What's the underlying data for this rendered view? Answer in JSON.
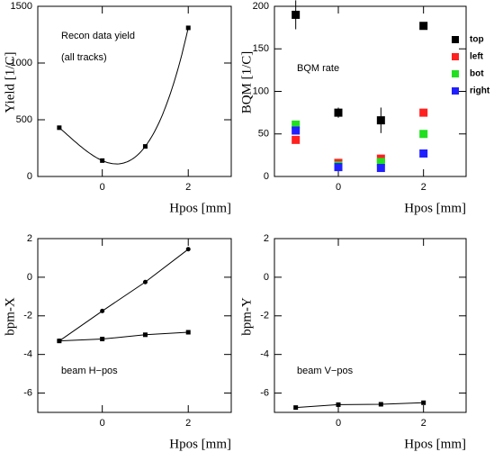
{
  "chart_data": [
    {
      "type": "scatter",
      "fit_curve": true,
      "y_label": "Yield  [1/C]",
      "x_label": "Hpos [mm]",
      "annotations": [
        "Recon data yield",
        "(all tracks)"
      ],
      "xlim": [
        -1.5,
        3
      ],
      "xticks": [
        0,
        2
      ],
      "ylim": [
        0,
        1500
      ],
      "yticks": [
        0,
        500,
        1000,
        1500
      ],
      "series": [
        {
          "color": "#000000",
          "marker": "square",
          "x": [
            -1,
            0,
            1,
            2
          ],
          "values": [
            430,
            140,
            265,
            1310
          ]
        }
      ]
    },
    {
      "type": "scatter",
      "y_label": "BQM  [1/C]",
      "x_label": "Hpos [mm]",
      "annotations": [
        "BQM rate"
      ],
      "legend": "outside-right",
      "xlim": [
        -1.5,
        3
      ],
      "xticks": [
        0,
        2
      ],
      "ylim": [
        0,
        200
      ],
      "yticks": [
        0,
        50,
        100,
        150,
        200
      ],
      "series": [
        {
          "name": "top",
          "color": "#000000",
          "marker": "square",
          "x": [
            -1,
            0,
            1,
            2
          ],
          "values": [
            190,
            75,
            66,
            177
          ],
          "errors": [
            17,
            6,
            15,
            3
          ]
        },
        {
          "name": "left",
          "color": "#ff2020",
          "marker": "square",
          "x": [
            -1,
            0,
            1,
            2
          ],
          "values": [
            43,
            16,
            21,
            75
          ]
        },
        {
          "name": "bot",
          "color": "#20e020",
          "marker": "square",
          "x": [
            -1,
            0,
            1,
            2
          ],
          "values": [
            61,
            13,
            17,
            50
          ]
        },
        {
          "name": "right",
          "color": "#2020ff",
          "marker": "square",
          "x": [
            -1,
            0,
            1,
            2
          ],
          "values": [
            54,
            11,
            10,
            27
          ]
        }
      ]
    },
    {
      "type": "line",
      "y_label": "bpm-X",
      "x_label": "Hpos [mm]",
      "annotations": [
        "beam H−pos"
      ],
      "xlim": [
        -1.5,
        3
      ],
      "xticks": [
        0,
        2
      ],
      "ylim": [
        -7,
        2
      ],
      "yticks": [
        -6,
        -4,
        -2,
        0,
        2
      ],
      "series": [
        {
          "color": "#000000",
          "marker": "circle",
          "x": [
            -1,
            0,
            1,
            2
          ],
          "values": [
            -3.3,
            -1.75,
            -0.25,
            1.45
          ]
        },
        {
          "color": "#000000",
          "marker": "square",
          "x": [
            -1,
            0,
            1,
            2
          ],
          "values": [
            -3.3,
            -3.2,
            -2.98,
            -2.85
          ]
        }
      ]
    },
    {
      "type": "line",
      "y_label": "bpm-Y",
      "x_label": "Hpos [mm]",
      "annotations": [
        "beam V−pos"
      ],
      "xlim": [
        -1.5,
        3
      ],
      "xticks": [
        0,
        2
      ],
      "ylim": [
        -7,
        2
      ],
      "yticks": [
        -6,
        -4,
        -2,
        0,
        2
      ],
      "series": [
        {
          "color": "#000000",
          "marker": "square",
          "x": [
            -1,
            0,
            1,
            2
          ],
          "values": [
            -6.75,
            -6.6,
            -6.58,
            -6.5
          ]
        }
      ]
    }
  ]
}
